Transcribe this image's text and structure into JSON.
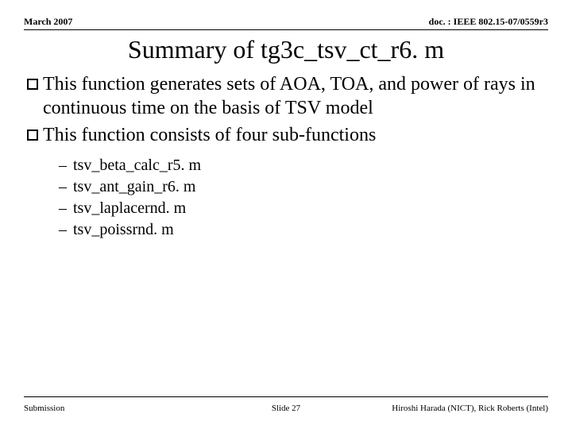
{
  "header": {
    "left": "March 2007",
    "right": "doc. : IEEE 802.15-07/0559r3"
  },
  "title": "Summary of tg3c_tsv_ct_r6. m",
  "bullets": [
    "This function generates sets of AOA, TOA, and power of rays in continuous time on the basis of TSV model",
    "This function consists of four sub-functions"
  ],
  "subitems": [
    "tsv_beta_calc_r5. m",
    "tsv_ant_gain_r6. m",
    "tsv_laplacernd. m",
    "tsv_poissrnd. m"
  ],
  "footer": {
    "left": "Submission",
    "center": "Slide 27",
    "right": "Hiroshi Harada (NICT), Rick Roberts (Intel)"
  }
}
